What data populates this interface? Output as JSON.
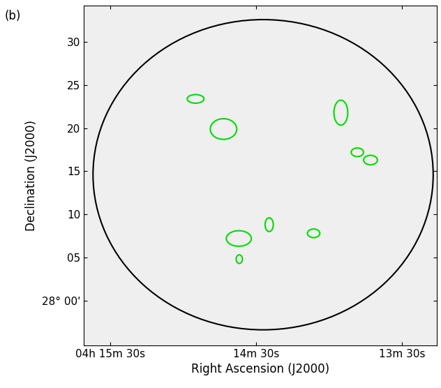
{
  "chart_data": {
    "type": "map",
    "title": "(b)",
    "xlabel": "Right Ascension (J2000)",
    "ylabel": "Declination (J2000)",
    "xlim": [
      940.9,
      795.7
    ],
    "ylim": [
      -5.2,
      34.2
    ],
    "xticks": [
      {
        "value": 930,
        "label": "04h 15m 30s"
      },
      {
        "value": 870,
        "label": "14m 30s"
      },
      {
        "value": 810,
        "label": "13m 30s"
      }
    ],
    "yticks": [
      {
        "value": 0,
        "label": "28° 00'"
      },
      {
        "value": 5,
        "label": "05"
      },
      10,
      15,
      20,
      25,
      30
    ],
    "boundary": {
      "center": [
        867.1,
        14.6
      ],
      "radius": [
        70,
        18
      ],
      "color": "#000000"
    },
    "regions": {
      "color": "#00dd00",
      "x": [
        894.9,
        883.4,
        835.1,
        828.3,
        822.9,
        877.1,
        864.6,
        846.3,
        876.9
      ],
      "y": [
        23.4,
        19.9,
        21.8,
        17.2,
        16.3,
        7.2,
        8.8,
        7.8,
        4.8
      ],
      "width": [
        6.9,
        10.9,
        5.7,
        5.1,
        5.7,
        10.3,
        3.4,
        5.1,
        2.6
      ],
      "height": [
        1.0,
        2.4,
        2.9,
        1.0,
        1.1,
        1.8,
        1.6,
        1.0,
        1.0
      ]
    }
  }
}
